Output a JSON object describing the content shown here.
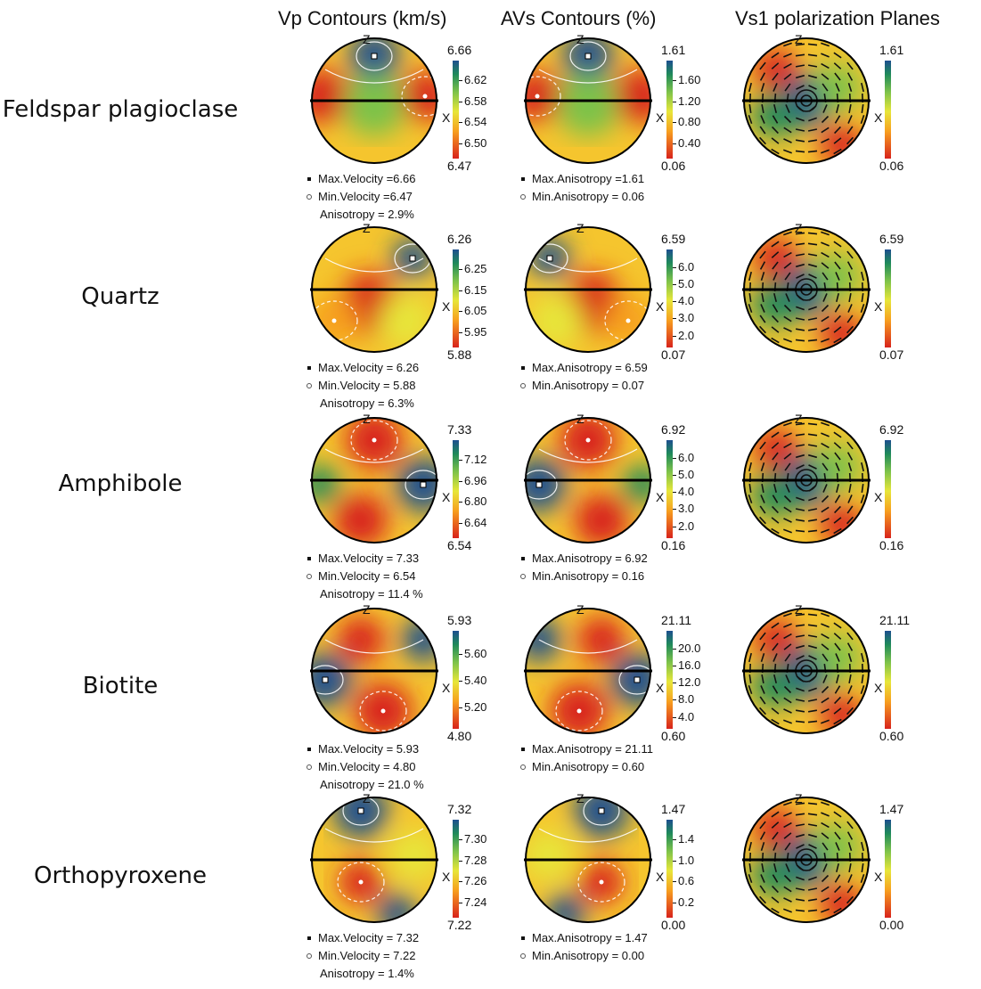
{
  "headers": {
    "vp": "Vp  Contours (km/s)",
    "avs": "AVs Contours (%)",
    "vs1": "Vs1 polarization Planes"
  },
  "axis_labels": {
    "z": "Z",
    "x": "X"
  },
  "colors": {
    "scale": [
      "#1d4f8f",
      "#1f8a5a",
      "#7cc24a",
      "#e7e63a",
      "#f7a01f",
      "#d8231c"
    ],
    "contour_line": "#ffffff",
    "outline": "#000000"
  },
  "rows": [
    {
      "mineral": "Feldspar plagioclase",
      "vp": {
        "max": "6.66",
        "min": "6.47",
        "ticks": [
          "6.62",
          "6.58",
          "6.54",
          "6.50"
        ],
        "max_label": "Max.Velocity =6.66",
        "min_label": "Min.Velocity =6.47",
        "anisotropy": "Anisotropy = 2.9%"
      },
      "avs": {
        "max": "1.61",
        "min": "0.06",
        "ticks": [
          "1.60",
          "1.20",
          "0.80",
          "0.40"
        ],
        "max_label": "Max.Anisotropy =1.61",
        "min_label": "Min.Anisotropy = 0.06"
      },
      "vs1": {
        "max": "1.61",
        "min": "0.06"
      }
    },
    {
      "mineral": "Quartz",
      "vp": {
        "max": "6.26",
        "min": "5.88",
        "ticks": [
          "6.25",
          "6.15",
          "6.05",
          "5.95"
        ],
        "max_label": "Max.Velocity = 6.26",
        "min_label": "Min.Velocity = 5.88",
        "anisotropy": "Anisotropy = 6.3%"
      },
      "avs": {
        "max": "6.59",
        "min": "0.07",
        "ticks": [
          "6.0",
          "5.0",
          "4.0",
          "3.0",
          "2.0"
        ],
        "max_label": "Max.Anisotropy = 6.59",
        "min_label": "Min.Anisotropy = 0.07"
      },
      "vs1": {
        "max": "6.59",
        "min": "0.07"
      }
    },
    {
      "mineral": "Amphibole",
      "vp": {
        "max": "7.33",
        "min": "6.54",
        "ticks": [
          "7.12",
          "6.96",
          "6.80",
          "6.64"
        ],
        "max_label": "Max.Velocity = 7.33",
        "min_label": "Min.Velocity = 6.54",
        "anisotropy": "Anisotropy = 11.4 %"
      },
      "avs": {
        "max": "6.92",
        "min": "0.16",
        "ticks": [
          "6.0",
          "5.0",
          "4.0",
          "3.0",
          "2.0"
        ],
        "max_label": "Max.Anisotropy = 6.92",
        "min_label": "Min.Anisotropy = 0.16"
      },
      "vs1": {
        "max": "6.92",
        "min": "0.16"
      }
    },
    {
      "mineral": "Biotite",
      "vp": {
        "max": "5.93",
        "min": "4.80",
        "ticks": [
          "5.60",
          "5.40",
          "5.20"
        ],
        "max_label": "Max.Velocity = 5.93",
        "min_label": "Min.Velocity = 4.80",
        "anisotropy": "Anisotropy = 21.0 %"
      },
      "avs": {
        "max": "21.11",
        "min": "0.60",
        "ticks": [
          "20.0",
          "16.0",
          "12.0",
          "8.0",
          "4.0"
        ],
        "max_label": "Max.Anisotropy = 21.11",
        "min_label": "Min.Anisotropy = 0.60"
      },
      "vs1": {
        "max": "21.11",
        "min": "0.60"
      }
    },
    {
      "mineral": "Orthopyroxene",
      "vp": {
        "max": "7.32",
        "min": "7.22",
        "ticks": [
          "7.30",
          "7.28",
          "7.26",
          "7.24"
        ],
        "max_label": "Max.Velocity = 7.32",
        "min_label": "Min.Velocity = 7.22",
        "anisotropy": "Anisotropy = 1.4%"
      },
      "avs": {
        "max": "1.47",
        "min": "0.00",
        "ticks": [
          "1.4",
          "1.0",
          "0.6",
          "0.2"
        ],
        "max_label": "Max.Anisotropy = 1.47",
        "min_label": "Min.Anisotropy = 0.00"
      },
      "vs1": {
        "max": "1.47",
        "min": "0.00"
      }
    }
  ]
}
